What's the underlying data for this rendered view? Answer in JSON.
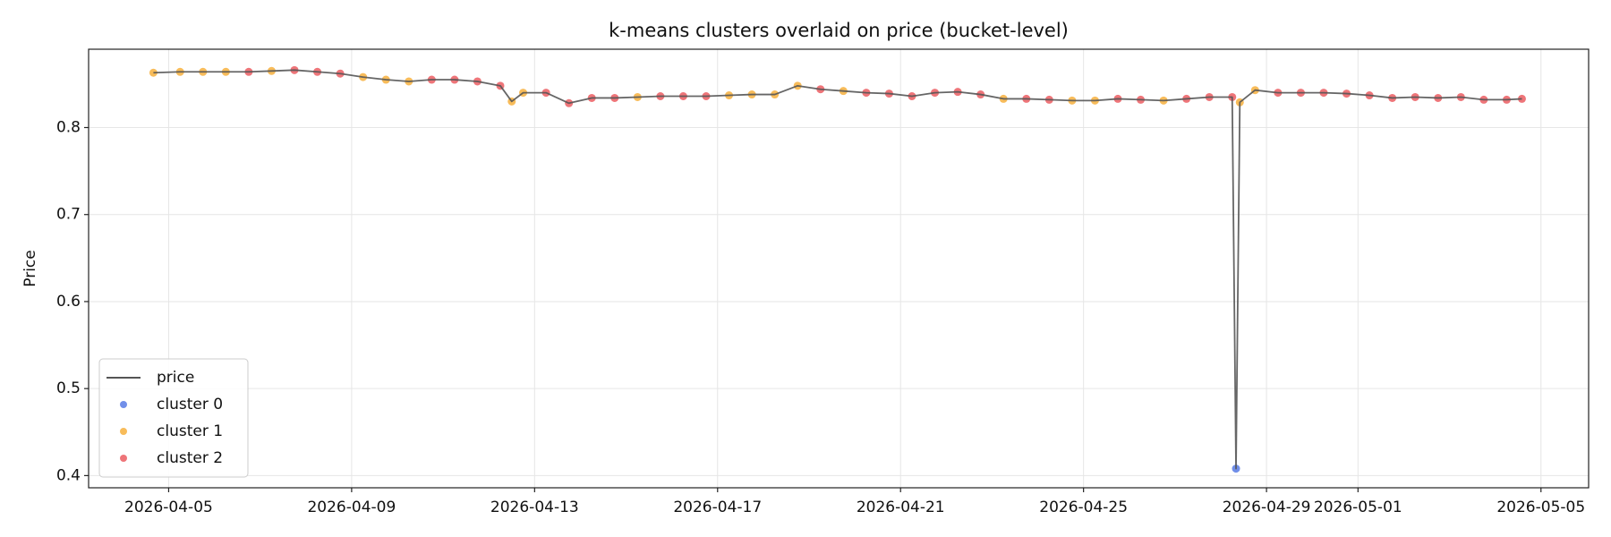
{
  "chart_data": {
    "type": "line",
    "title": "k-means clusters overlaid on price (bucket-level)",
    "ylabel": "Price",
    "xlim": [
      "2026-04-03T06:00",
      "2026-05-06T01:00"
    ],
    "xticks": [
      "2026-04-05",
      "2026-04-09",
      "2026-04-13",
      "2026-04-17",
      "2026-04-21",
      "2026-04-25",
      "2026-04-29",
      "2026-05-01",
      "2026-05-05"
    ],
    "ylim": [
      0.386,
      0.89
    ],
    "yticks": [
      0.4,
      0.5,
      0.6,
      0.7,
      0.8
    ],
    "grid": true,
    "legend": "lower left",
    "x": [
      "2026-04-04T16:00",
      "2026-04-05T06:00",
      "2026-04-05T18:00",
      "2026-04-06T06:00",
      "2026-04-06T18:00",
      "2026-04-07T06:00",
      "2026-04-07T18:00",
      "2026-04-08T06:00",
      "2026-04-08T18:00",
      "2026-04-09T06:00",
      "2026-04-09T18:00",
      "2026-04-10T06:00",
      "2026-04-10T18:00",
      "2026-04-11T06:00",
      "2026-04-11T18:00",
      "2026-04-12T06:00",
      "2026-04-12T12:00",
      "2026-04-12T18:00",
      "2026-04-13T06:00",
      "2026-04-13T18:00",
      "2026-04-14T06:00",
      "2026-04-14T18:00",
      "2026-04-15T06:00",
      "2026-04-15T18:00",
      "2026-04-16T06:00",
      "2026-04-16T18:00",
      "2026-04-17T06:00",
      "2026-04-17T18:00",
      "2026-04-18T06:00",
      "2026-04-18T18:00",
      "2026-04-19T06:00",
      "2026-04-19T18:00",
      "2026-04-20T06:00",
      "2026-04-20T18:00",
      "2026-04-21T06:00",
      "2026-04-21T18:00",
      "2026-04-22T06:00",
      "2026-04-22T18:00",
      "2026-04-23T06:00",
      "2026-04-23T18:00",
      "2026-04-24T06:00",
      "2026-04-24T18:00",
      "2026-04-25T06:00",
      "2026-04-25T18:00",
      "2026-04-26T06:00",
      "2026-04-26T18:00",
      "2026-04-27T06:00",
      "2026-04-27T18:00",
      "2026-04-28T06:00",
      "2026-04-28T08:00",
      "2026-04-28T10:00",
      "2026-04-28T18:00",
      "2026-04-29T06:00",
      "2026-04-29T18:00",
      "2026-04-30T06:00",
      "2026-04-30T18:00",
      "2026-05-01T06:00",
      "2026-05-01T18:00",
      "2026-05-02T06:00",
      "2026-05-02T18:00",
      "2026-05-03T06:00",
      "2026-05-03T18:00",
      "2026-05-04T06:00",
      "2026-05-04T14:00"
    ],
    "series": [
      {
        "name": "price",
        "type": "line",
        "color": "#555555",
        "values": [
          0.863,
          0.864,
          0.864,
          0.864,
          0.864,
          0.865,
          0.866,
          0.864,
          0.862,
          0.858,
          0.855,
          0.853,
          0.855,
          0.855,
          0.853,
          0.848,
          0.83,
          0.84,
          0.84,
          0.828,
          0.834,
          0.834,
          0.835,
          0.836,
          0.836,
          0.836,
          0.837,
          0.838,
          0.838,
          0.848,
          0.844,
          0.842,
          0.84,
          0.839,
          0.836,
          0.84,
          0.841,
          0.838,
          0.833,
          0.833,
          0.832,
          0.831,
          0.831,
          0.833,
          0.832,
          0.831,
          0.833,
          0.835,
          0.835,
          0.408,
          0.829,
          0.843,
          0.84,
          0.84,
          0.84,
          0.839,
          0.837,
          0.834,
          0.835,
          0.834,
          0.835,
          0.832,
          0.832,
          0.833
        ]
      },
      {
        "name": "cluster 0",
        "type": "scatter",
        "color": "#4169e1",
        "x": [
          "2026-04-28T08:00"
        ],
        "values": [
          0.408
        ]
      },
      {
        "name": "cluster 1",
        "type": "scatter",
        "color": "#f5a623",
        "x": [
          "2026-04-04T16:00",
          "2026-04-05T06:00",
          "2026-04-05T18:00",
          "2026-04-06T06:00",
          "2026-04-07T06:00",
          "2026-04-09T06:00",
          "2026-04-09T18:00",
          "2026-04-10T06:00",
          "2026-04-12T12:00",
          "2026-04-12T18:00",
          "2026-04-15T06:00",
          "2026-04-17T06:00",
          "2026-04-17T18:00",
          "2026-04-18T06:00",
          "2026-04-18T18:00",
          "2026-04-19T18:00",
          "2026-04-23T06:00",
          "2026-04-24T18:00",
          "2026-04-25T06:00",
          "2026-04-26T18:00",
          "2026-04-28T10:00",
          "2026-04-28T18:00"
        ],
        "values": [
          0.863,
          0.864,
          0.864,
          0.864,
          0.865,
          0.858,
          0.855,
          0.853,
          0.83,
          0.84,
          0.835,
          0.837,
          0.838,
          0.838,
          0.848,
          0.842,
          0.833,
          0.831,
          0.831,
          0.831,
          0.829,
          0.843
        ]
      },
      {
        "name": "cluster 2",
        "type": "scatter",
        "color": "#e8474c",
        "x": [
          "2026-04-06T18:00",
          "2026-04-07T18:00",
          "2026-04-08T06:00",
          "2026-04-08T18:00",
          "2026-04-10T18:00",
          "2026-04-11T06:00",
          "2026-04-11T18:00",
          "2026-04-12T06:00",
          "2026-04-13T06:00",
          "2026-04-13T18:00",
          "2026-04-14T06:00",
          "2026-04-14T18:00",
          "2026-04-15T18:00",
          "2026-04-16T06:00",
          "2026-04-16T18:00",
          "2026-04-19T06:00",
          "2026-04-20T06:00",
          "2026-04-20T18:00",
          "2026-04-21T06:00",
          "2026-04-21T18:00",
          "2026-04-22T06:00",
          "2026-04-22T18:00",
          "2026-04-23T18:00",
          "2026-04-24T06:00",
          "2026-04-25T18:00",
          "2026-04-26T06:00",
          "2026-04-27T06:00",
          "2026-04-27T18:00",
          "2026-04-28T06:00",
          "2026-04-29T06:00",
          "2026-04-29T18:00",
          "2026-04-30T06:00",
          "2026-04-30T18:00",
          "2026-05-01T06:00",
          "2026-05-01T18:00",
          "2026-05-02T06:00",
          "2026-05-02T18:00",
          "2026-05-03T06:00",
          "2026-05-03T18:00",
          "2026-05-04T06:00",
          "2026-05-04T14:00"
        ],
        "values": [
          0.864,
          0.866,
          0.864,
          0.862,
          0.855,
          0.855,
          0.853,
          0.848,
          0.84,
          0.828,
          0.834,
          0.834,
          0.836,
          0.836,
          0.836,
          0.844,
          0.84,
          0.839,
          0.836,
          0.84,
          0.841,
          0.838,
          0.833,
          0.832,
          0.833,
          0.832,
          0.833,
          0.835,
          0.835,
          0.84,
          0.84,
          0.84,
          0.839,
          0.837,
          0.834,
          0.835,
          0.834,
          0.835,
          0.832,
          0.832,
          0.833
        ]
      }
    ]
  }
}
